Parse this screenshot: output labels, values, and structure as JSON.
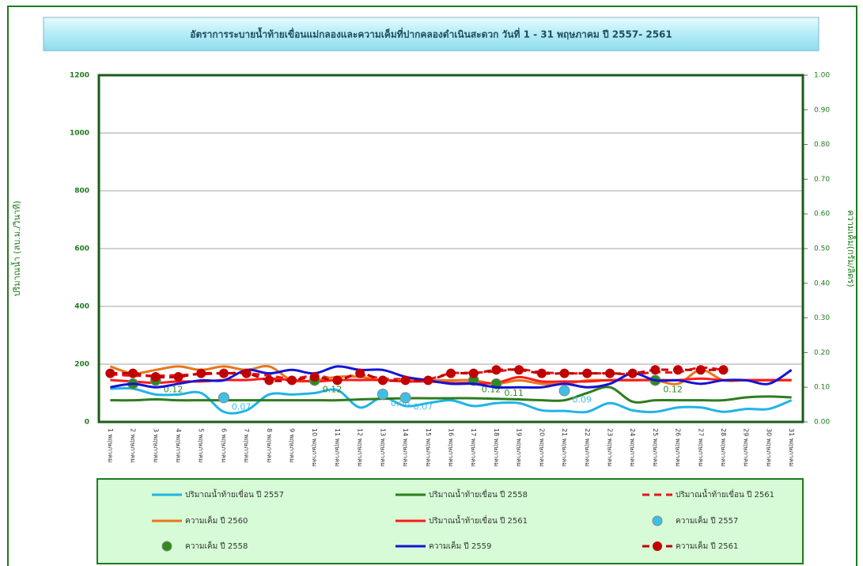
{
  "chart_data": {
    "type": "line",
    "title": "อัตราการระบายน้ำท้ายเขื่อนแม่กลองและความเค็มที่ปากคลองดำเนินสะดวก วันที่  1 - 31 พฤษภาคม ปี 2557- 2561",
    "y_label": "ปริมาณน้ำ (ลบ.ม./วินาที)",
    "y2_label": "ความเค็ม(กรัม/ลิตร)",
    "categories": [
      "1 พฤษภาคม",
      "2 พฤษภาคม",
      "3 พฤษภาคม",
      "4 พฤษภาคม",
      "5 พฤษภาคม",
      "6 พฤษภาคม",
      "7 พฤษภาคม",
      "8 พฤษภาคม",
      "9 พฤษภาคม",
      "10 พฤษภาคม",
      "11 พฤษภาคม",
      "12 พฤษภาคม",
      "13 พฤษภาคม",
      "14 พฤษภาคม",
      "15 พฤษภาคม",
      "16 พฤษภาคม",
      "17 พฤษภาคม",
      "18 พฤษภาคม",
      "19 พฤษภาคม",
      "20 พฤษภาคม",
      "21 พฤษภาคม",
      "22 พฤษภาคม",
      "23 พฤษภาคม",
      "24 พฤษภาคม",
      "25 พฤษภาคม",
      "26 พฤษภาคม",
      "27 พฤษภาคม",
      "28 พฤษภาคม",
      "29 พฤษภาคม",
      "30 พฤษภาคม",
      "31 พฤษภาคม"
    ],
    "ylim": [
      0,
      1200
    ],
    "yticks": [
      0,
      200,
      400,
      600,
      800,
      1000,
      1200
    ],
    "y2lim": [
      0,
      1
    ],
    "y2ticks": [
      {
        "value": 0,
        "label": "0.00"
      },
      {
        "value": 0.1,
        "label": "0.10"
      },
      {
        "value": 0.2,
        "label": "0.20"
      },
      {
        "value": 0.3,
        "label": "0.30"
      },
      {
        "value": 0.4,
        "label": "0.40"
      },
      {
        "value": 0.5,
        "label": "0.50"
      },
      {
        "value": 0.6,
        "label": "0.60"
      },
      {
        "value": 0.7,
        "label": "0.70"
      },
      {
        "value": 0.8,
        "label": "0.80"
      },
      {
        "value": 0.9,
        "label": "0.90"
      },
      {
        "value": 1,
        "label": "1.00"
      }
    ],
    "grid": true,
    "series": [
      {
        "name": "ปริมาณน้ำท้ายเขื่อน ปี 2557",
        "color": "#1fb4e6",
        "line": "solid",
        "marker": false,
        "values": [
          115,
          115,
          95,
          95,
          100,
          35,
          40,
          95,
          95,
          100,
          110,
          50,
          85,
          55,
          65,
          75,
          55,
          65,
          65,
          40,
          38,
          35,
          65,
          40,
          35,
          50,
          50,
          35,
          45,
          45,
          75
        ]
      },
      {
        "name": "ปริมาณน้ำท้ายเขื่อน ปี 2558",
        "color": "#2e7d1e",
        "line": "solid",
        "marker": false,
        "values": [
          75,
          75,
          78,
          75,
          75,
          75,
          75,
          75,
          75,
          75,
          75,
          78,
          80,
          82,
          82,
          82,
          82,
          80,
          78,
          75,
          75,
          100,
          120,
          70,
          75,
          75,
          75,
          75,
          85,
          88,
          85
        ]
      },
      {
        "name": "ปริมาณน้ำท้ายเขื่อน ปี 2561",
        "color": "#e8141b",
        "line": "dashed",
        "marker": false,
        "values": [
          165,
          160,
          160,
          162,
          165,
          168,
          168,
          160,
          150,
          160,
          150,
          162,
          150,
          148,
          148,
          168,
          170,
          175,
          182,
          172,
          168,
          168,
          168,
          165,
          172,
          172,
          188,
          180,
          null,
          null,
          null
        ]
      },
      {
        "name": "ความเค็ม ปี 2560",
        "color": "#e8761b",
        "line": "solid",
        "marker": false,
        "axis": "y2",
        "values": [
          0.16,
          0.14,
          0.15,
          0.16,
          0.15,
          0.16,
          0.15,
          0.16,
          0.12,
          0.12,
          0.13,
          0.13,
          0.12,
          0.12,
          0.12,
          0.12,
          0.12,
          0.11,
          0.12,
          0.11,
          0.11,
          0.12,
          0.12,
          0.12,
          0.12,
          0.11,
          0.15,
          0.12,
          0.12,
          0.12,
          0.12
        ]
      },
      {
        "name": "ปริมาณน้ำท้ายเขื่อน ปี 2561",
        "color": "#ff1a1a",
        "line": "solid",
        "marker": false,
        "values": [
          145,
          140,
          135,
          140,
          140,
          145,
          145,
          150,
          145,
          140,
          145,
          145,
          145,
          140,
          140,
          135,
          135,
          135,
          155,
          140,
          140,
          140,
          145,
          145,
          145,
          145,
          150,
          145,
          145,
          145,
          145
        ]
      },
      {
        "name": "ความเค็ม ปี 2557",
        "color": "#3cc0e8",
        "line": null,
        "marker": true,
        "axis": "y2",
        "values": [
          null,
          null,
          null,
          null,
          null,
          0.07,
          null,
          null,
          null,
          null,
          null,
          null,
          0.08,
          0.07,
          null,
          null,
          null,
          null,
          null,
          null,
          0.09,
          null,
          null,
          null,
          null,
          null,
          null,
          null,
          null,
          null,
          null
        ],
        "value_labels": [
          null,
          null,
          null,
          null,
          null,
          "0.07",
          null,
          null,
          null,
          null,
          null,
          null,
          "0.08",
          "0.07",
          null,
          null,
          null,
          null,
          null,
          null,
          "0.09",
          null,
          null,
          null,
          null,
          null,
          null,
          null,
          null,
          null,
          null
        ]
      },
      {
        "name": "ความเค็ม ปี 2558",
        "color": "#2e8b1e",
        "line": null,
        "marker": true,
        "axis": "y2",
        "values": [
          null,
          0.11,
          0.12,
          null,
          null,
          null,
          null,
          null,
          null,
          0.12,
          null,
          null,
          null,
          null,
          null,
          null,
          0.12,
          0.11,
          null,
          null,
          null,
          null,
          null,
          null,
          0.12,
          null,
          null,
          null,
          null,
          null,
          null
        ],
        "value_labels": [
          null,
          null,
          "0.12",
          null,
          null,
          null,
          null,
          null,
          null,
          "0.12",
          null,
          null,
          null,
          null,
          null,
          null,
          "0.12",
          "0.11",
          null,
          null,
          null,
          null,
          null,
          null,
          "0.12",
          null,
          null,
          null,
          null,
          null,
          null
        ]
      },
      {
        "name": "ความเค็ม ปี 2559",
        "color": "#1414d2",
        "line": "solid",
        "marker": false,
        "axis": "y2",
        "values": [
          0.1,
          0.11,
          0.1,
          0.11,
          0.12,
          0.12,
          0.15,
          0.14,
          0.15,
          0.14,
          0.16,
          0.15,
          0.15,
          0.13,
          0.12,
          0.11,
          0.11,
          0.1,
          0.1,
          0.1,
          0.11,
          0.1,
          0.11,
          0.14,
          0.12,
          0.12,
          0.11,
          0.12,
          0.12,
          0.11,
          0.15
        ]
      },
      {
        "name": "ความเค็ม ปี 2561",
        "color": "#c00000",
        "line": "dashed",
        "marker": true,
        "axis": "y2",
        "values": [
          0.14,
          0.14,
          0.13,
          0.13,
          0.14,
          0.14,
          0.14,
          0.12,
          0.12,
          0.13,
          0.12,
          0.14,
          0.12,
          0.12,
          0.12,
          0.14,
          0.14,
          0.15,
          0.15,
          0.14,
          0.14,
          0.14,
          0.14,
          0.14,
          0.15,
          0.15,
          0.15,
          0.15,
          null,
          null,
          null
        ]
      }
    ]
  }
}
